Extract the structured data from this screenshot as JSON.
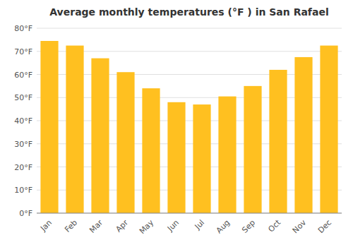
{
  "chart_data": {
    "type": "bar",
    "title": "Average monthly temperatures (°F ) in San Rafael",
    "categories": [
      "Jan",
      "Feb",
      "Mar",
      "Apr",
      "May",
      "Jun",
      "Jul",
      "Aug",
      "Sep",
      "Oct",
      "Nov",
      "Dec"
    ],
    "values": [
      74.5,
      72.5,
      67,
      61,
      54,
      48,
      47,
      50.5,
      55,
      62,
      67.5,
      72.5
    ],
    "color": "#FFC020",
    "ylim": [
      0,
      80
    ],
    "yticks": [
      {
        "value": 0,
        "label": "0°F"
      },
      {
        "value": 10,
        "label": "10°F"
      },
      {
        "value": 20,
        "label": "20°F"
      },
      {
        "value": 30,
        "label": "30°F"
      },
      {
        "value": 40,
        "label": "40°F"
      },
      {
        "value": 50,
        "label": "50°F"
      },
      {
        "value": 60,
        "label": "60°F"
      },
      {
        "value": 70,
        "label": "70°F"
      },
      {
        "value": 80,
        "label": "80°F"
      }
    ],
    "grid": true
  }
}
